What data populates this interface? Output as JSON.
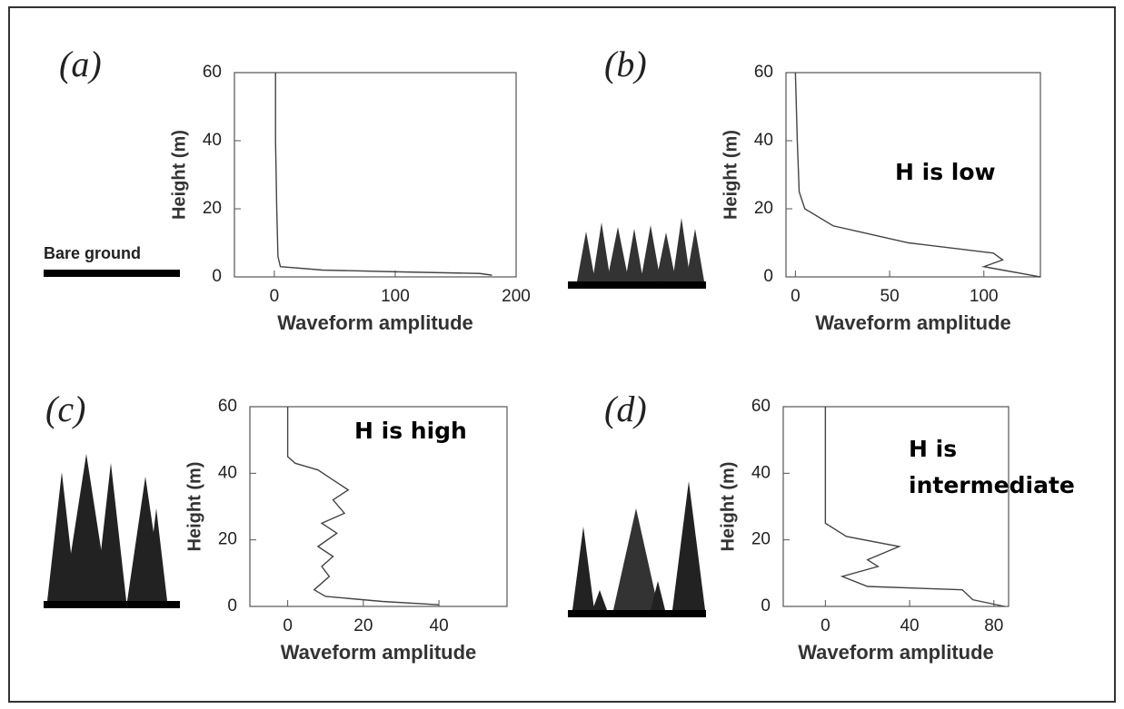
{
  "chart_data": [
    {
      "type": "line",
      "panel": "(a)",
      "illustration_label": "Bare ground",
      "x_label": "Waveform amplitude",
      "y_label": "Height (m)",
      "xlim": [
        -33,
        200
      ],
      "ylim": [
        0,
        60
      ],
      "xticks": [
        0,
        100,
        200
      ],
      "yticks": [
        0,
        20,
        40,
        60
      ],
      "series": [
        {
          "color": "#444",
          "x": [
            1,
            1,
            2,
            3,
            5,
            40,
            100,
            170,
            180
          ],
          "values": [
            60,
            40,
            20,
            6,
            3,
            2,
            1.5,
            1,
            0.5
          ]
        }
      ]
    },
    {
      "type": "line",
      "panel": "(b)",
      "annotation": "H is low",
      "x_label": "Waveform amplitude",
      "y_label": "Height (m)",
      "xlim": [
        -5,
        130
      ],
      "ylim": [
        0,
        60
      ],
      "xticks": [
        0,
        50,
        100
      ],
      "yticks": [
        0,
        20,
        40,
        60
      ],
      "series": [
        {
          "color": "#444",
          "x": [
            0,
            1,
            2,
            5,
            20,
            60,
            105,
            110,
            100,
            110,
            130
          ],
          "values": [
            60,
            40,
            25,
            20,
            15,
            10,
            7,
            5,
            3,
            2,
            0
          ]
        }
      ]
    },
    {
      "type": "line",
      "panel": "(c)",
      "annotation": "H is high",
      "x_label": "Waveform amplitude",
      "y_label": "Height (m)",
      "xlim": [
        -10,
        58
      ],
      "ylim": [
        0,
        60
      ],
      "xticks": [
        0,
        20,
        40
      ],
      "yticks": [
        0,
        20,
        40,
        60
      ],
      "series": [
        {
          "color": "#444",
          "x": [
            0,
            0,
            2,
            8,
            12,
            16,
            12,
            15,
            9,
            13,
            8,
            12,
            9,
            11,
            7,
            10,
            25,
            40
          ],
          "values": [
            60,
            45,
            43,
            41,
            38,
            35,
            32,
            28,
            25,
            22,
            18,
            15,
            12,
            9,
            5,
            3,
            1.5,
            0.5
          ]
        }
      ]
    },
    {
      "type": "line",
      "panel": "(d)",
      "annotation": "H is intermediate",
      "x_label": "Waveform amplitude",
      "y_label": "Height (m)",
      "xlim": [
        -20,
        87
      ],
      "ylim": [
        0,
        60
      ],
      "xticks": [
        0,
        40,
        80
      ],
      "yticks": [
        0,
        20,
        40,
        60
      ],
      "series": [
        {
          "color": "#444",
          "x": [
            0,
            0,
            0,
            10,
            35,
            20,
            25,
            8,
            20,
            65,
            70,
            85
          ],
          "values": [
            60,
            40,
            25,
            21,
            18,
            14,
            12,
            9,
            6,
            5,
            2,
            0
          ]
        }
      ]
    }
  ]
}
